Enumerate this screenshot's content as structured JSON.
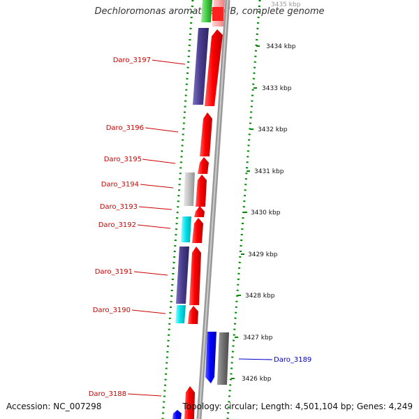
{
  "title": "Dechloromonas aromatica RCB, complete genome",
  "footer": {
    "accession": "Accession: NC_007298",
    "summary": "Topology: circular; Length: 4,501,104 bp; Genes: 4,249"
  },
  "scale_labels": [
    "3435 kbp",
    "3434 kbp",
    "3433 kbp",
    "3432 kbp",
    "3431 kbp",
    "3430 kbp",
    "3429 kbp",
    "3428 kbp",
    "3427 kbp",
    "3426 kbp"
  ],
  "gene_labels": [
    {
      "name": "Daro_3197",
      "color": "#cc0000"
    },
    {
      "name": "Daro_3196",
      "color": "#cc0000"
    },
    {
      "name": "Daro_3195",
      "color": "#cc0000"
    },
    {
      "name": "Daro_3194",
      "color": "#cc0000"
    },
    {
      "name": "Daro_3193",
      "color": "#cc0000"
    },
    {
      "name": "Daro_3192",
      "color": "#cc0000"
    },
    {
      "name": "Daro_3191",
      "color": "#cc0000"
    },
    {
      "name": "Daro_3190",
      "color": "#cc0000"
    },
    {
      "name": "Daro_3189",
      "color": "#0000cc"
    },
    {
      "name": "Daro_3188",
      "color": "#cc0000"
    }
  ],
  "colors": {
    "cds": "#ff0000",
    "cds_reverse": "#0000ff",
    "cog_dark": "#4a3d8f",
    "cog_cyan": "#00e5ee",
    "cog_gray": "#c0c0c0",
    "cog_darkgray": "#707070",
    "cog_green": "#44cc44",
    "cog_pink": "#ffaaaa",
    "backbone": "#888888",
    "dots": "#008800"
  }
}
